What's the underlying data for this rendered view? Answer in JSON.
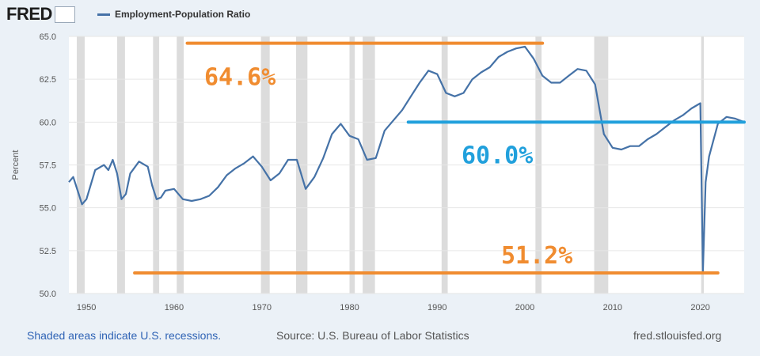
{
  "header": {
    "logo_text": "FRED",
    "legend_label": "Employment-Population Ratio"
  },
  "footer": {
    "recessions_note": "Shaded areas indicate U.S. recessions.",
    "source": "Source: U.S. Bureau of Labor Statistics",
    "site": "fred.stlouisfed.org"
  },
  "colors": {
    "series": "#4572a7",
    "recession_shading": "#dcdcdc",
    "annotation_orange": "#f08c30",
    "annotation_blue": "#21a0dc",
    "plot_background": "#ffffff",
    "page_background": "#ebf1f7"
  },
  "chart_data": {
    "type": "line",
    "title": "",
    "xlabel": "",
    "ylabel": "Percent",
    "xlim": [
      1948,
      2025
    ],
    "ylim": [
      50.0,
      65.0
    ],
    "y_ticks": [
      "50.0",
      "52.5",
      "55.0",
      "57.5",
      "60.0",
      "62.5",
      "65.0"
    ],
    "x_ticks": [
      "1950",
      "1960",
      "1970",
      "1980",
      "1990",
      "2000",
      "2010",
      "2020"
    ],
    "grid": "horizontal",
    "legend": "top-left",
    "series": [
      {
        "name": "Employment-Population Ratio",
        "x": [
          1948,
          1948.5,
          1949,
          1949.5,
          1950,
          1951,
          1952,
          1952.5,
          1953,
          1953.5,
          1954,
          1954.5,
          1955,
          1956,
          1957,
          1957.5,
          1958,
          1958.5,
          1959,
          1960,
          1961,
          1962,
          1963,
          1964,
          1965,
          1966,
          1967,
          1968,
          1969,
          1970,
          1971,
          1972,
          1973,
          1974,
          1975,
          1976,
          1977,
          1978,
          1979,
          1980,
          1981,
          1982,
          1983,
          1984,
          1985,
          1986,
          1987,
          1988,
          1989,
          1990,
          1991,
          1992,
          1993,
          1994,
          1995,
          1996,
          1997,
          1998,
          1999,
          2000,
          2001,
          2002,
          2003,
          2004,
          2005,
          2006,
          2007,
          2008,
          2009,
          2010,
          2011,
          2012,
          2013,
          2014,
          2015,
          2016,
          2017,
          2018,
          2019,
          2020,
          2020.3,
          2020.6,
          2021,
          2022,
          2023,
          2024,
          2025
        ],
        "values": [
          56.5,
          56.8,
          56.0,
          55.2,
          55.5,
          57.2,
          57.5,
          57.2,
          57.8,
          57.0,
          55.5,
          55.8,
          57.0,
          57.7,
          57.4,
          56.3,
          55.5,
          55.6,
          56.0,
          56.1,
          55.5,
          55.4,
          55.5,
          55.7,
          56.2,
          56.9,
          57.3,
          57.6,
          58.0,
          57.4,
          56.6,
          57.0,
          57.8,
          57.8,
          56.1,
          56.8,
          57.9,
          59.3,
          59.9,
          59.2,
          59.0,
          57.8,
          57.9,
          59.5,
          60.1,
          60.7,
          61.5,
          62.3,
          63.0,
          62.8,
          61.7,
          61.5,
          61.7,
          62.5,
          62.9,
          63.2,
          63.8,
          64.1,
          64.3,
          64.4,
          63.7,
          62.7,
          62.3,
          62.3,
          62.7,
          63.1,
          63.0,
          62.2,
          59.3,
          58.5,
          58.4,
          58.6,
          58.6,
          59.0,
          59.3,
          59.7,
          60.1,
          60.4,
          60.8,
          61.1,
          51.3,
          56.5,
          58.0,
          59.9,
          60.3,
          60.2,
          60.0
        ]
      }
    ],
    "recessions": [
      [
        1948.9,
        1949.8
      ],
      [
        1953.5,
        1954.4
      ],
      [
        1957.6,
        1958.3
      ],
      [
        1960.3,
        1961.1
      ],
      [
        1969.9,
        1970.9
      ],
      [
        1973.9,
        1975.2
      ],
      [
        1980.0,
        1980.6
      ],
      [
        1981.5,
        1982.9
      ],
      [
        1990.5,
        1991.2
      ],
      [
        2001.2,
        2001.9
      ],
      [
        2007.9,
        2009.5
      ],
      [
        2020.1,
        2020.4
      ]
    ],
    "annotations": [
      {
        "label": "64.6%",
        "value": 64.6,
        "x_start": 1961.5,
        "x_end": 2002,
        "color": "orange"
      },
      {
        "label": "60.0%",
        "value": 60.0,
        "x_start": 1986.7,
        "x_end": 2025,
        "color": "blue"
      },
      {
        "label": "51.2%",
        "value": 51.2,
        "x_start": 1955.5,
        "x_end": 2022,
        "color": "orange"
      }
    ]
  }
}
